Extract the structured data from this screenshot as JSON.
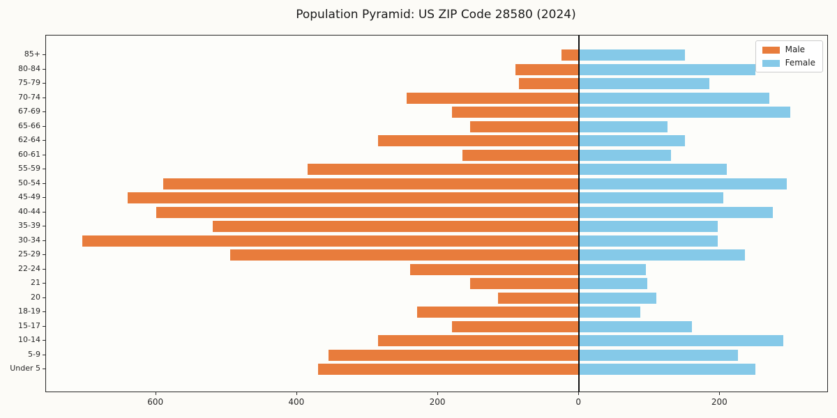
{
  "title": "Population Pyramid: US ZIP Code 28580 (2024)",
  "legend": {
    "male_label": "Male",
    "female_label": "Female"
  },
  "colors": {
    "male": "#e87c3c",
    "female": "#85c9e8",
    "axis": "#262626",
    "zero_line": "#111111",
    "background": "#fcfbf7"
  },
  "chart_data": {
    "type": "bar",
    "subtype": "population-pyramid-horizontal",
    "title": "Population Pyramid: US ZIP Code 28580 (2024)",
    "categories": [
      "85+",
      "80-84",
      "75-79",
      "70-74",
      "67-69",
      "65-66",
      "62-64",
      "60-61",
      "55-59",
      "50-54",
      "45-49",
      "40-44",
      "35-39",
      "30-34",
      "25-29",
      "22-24",
      "21",
      "20",
      "18-19",
      "15-17",
      "10-14",
      "5-9",
      "Under 5"
    ],
    "series": [
      {
        "name": "Male",
        "side": "left",
        "color": "#e87c3c",
        "values": [
          25,
          90,
          85,
          245,
          180,
          155,
          285,
          165,
          385,
          590,
          640,
          600,
          520,
          705,
          495,
          240,
          155,
          115,
          230,
          180,
          285,
          355,
          370
        ]
      },
      {
        "name": "Female",
        "side": "right",
        "color": "#85c9e8",
        "values": [
          150,
          250,
          185,
          270,
          300,
          125,
          150,
          130,
          210,
          295,
          205,
          275,
          197,
          197,
          235,
          95,
          97,
          110,
          87,
          160,
          290,
          225,
          250
        ]
      }
    ],
    "xlim": [
      -756,
      352
    ],
    "xticks": [
      {
        "value": -600,
        "label": "600"
      },
      {
        "value": -400,
        "label": "400"
      },
      {
        "value": -200,
        "label": "200"
      },
      {
        "value": 0,
        "label": "0"
      },
      {
        "value": 200,
        "label": "200"
      }
    ],
    "grid": false,
    "zero_line": true,
    "legend_position": "upper right"
  }
}
